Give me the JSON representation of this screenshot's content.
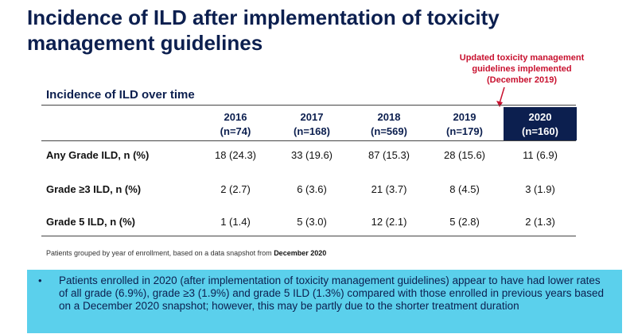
{
  "title": "Incidence of ILD after implementation of toxicity management guidelines",
  "annotation": {
    "line1": "Updated toxicity management",
    "line2": "guidelines implemented",
    "line3": "(December 2019)",
    "color": "#c8102e"
  },
  "section_heading": "Incidence of ILD over time",
  "table": {
    "columns": [
      {
        "year": "2016",
        "n": "(n=74)"
      },
      {
        "year": "2017",
        "n": "(n=168)"
      },
      {
        "year": "2018",
        "n": "(n=569)"
      },
      {
        "year": "2019",
        "n": "(n=179)"
      },
      {
        "year": "2020",
        "n": "(n=160)"
      }
    ],
    "rows": [
      {
        "label": "Any Grade ILD, n (%)",
        "values": [
          "18 (24.3)",
          "33 (19.6)",
          "87 (15.3)",
          "28 (15.6)",
          "11 (6.9)"
        ]
      },
      {
        "label": "Grade ≥3 ILD, n (%)",
        "values": [
          "2 (2.7)",
          "6 (3.6)",
          "21 (3.7)",
          "8 (4.5)",
          "3 (1.9)"
        ]
      },
      {
        "label": "Grade 5 ILD, n (%)",
        "values": [
          "1 (1.4)",
          "5 (3.0)",
          "12 (2.1)",
          "5 (2.8)",
          "2 (1.3)"
        ]
      }
    ]
  },
  "footnote": {
    "text": "Patients grouped by year of enrollment, based on a data snapshot from ",
    "bold": "December 2020"
  },
  "summary": {
    "bullet_icon": "bullet-dot",
    "text": "Patients enrolled in 2020 (after implementation of toxicity management guidelines) appear to have had lower rates of all grade (6.9%), grade ≥3 (1.9%) and grade 5 ILD (1.3%) compared with those enrolled in previous years based on a December 2020 snapshot; however, this may be partly due to the shorter treatment duration"
  },
  "colors": {
    "navy": "#0c1f4f",
    "highlight_bg": "#0c1f4f",
    "summary_bg": "#5bd0ec"
  }
}
